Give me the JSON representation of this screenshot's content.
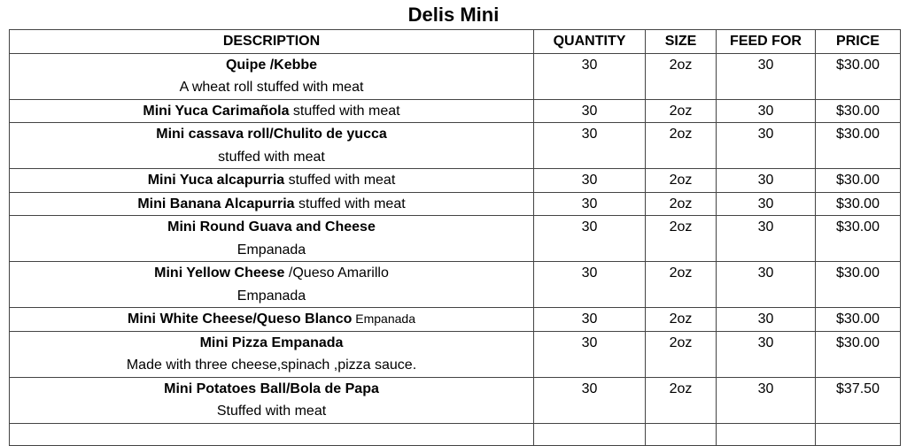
{
  "title": "Delis Mini",
  "headers": {
    "description": "DESCRIPTION",
    "quantity": "QUANTITY",
    "size": "SIZE",
    "feed_for": "FEED FOR",
    "price": "PRICE"
  },
  "rows": [
    {
      "bold": "Quipe /Kebbe",
      "inline": "",
      "line2": "A wheat roll stuffed with meat",
      "quantity": "30",
      "size": "2oz",
      "feed_for": "30",
      "price": "$30.00"
    },
    {
      "bold": "Mini Yuca Carimañola",
      "inline": " stuffed with meat",
      "line2": "",
      "quantity": "30",
      "size": "2oz",
      "feed_for": "30",
      "price": "$30.00"
    },
    {
      "bold": "Mini cassava roll/Chulito de yucca",
      "inline": "",
      "line2": "stuffed with meat",
      "quantity": "30",
      "size": "2oz",
      "feed_for": "30",
      "price": "$30.00"
    },
    {
      "bold": "Mini Yuca alcapurria",
      "inline": " stuffed with meat",
      "line2": "",
      "quantity": "30",
      "size": "2oz",
      "feed_for": "30",
      "price": "$30.00"
    },
    {
      "bold": "Mini Banana  Alcapurria",
      "inline": " stuffed with  meat",
      "line2": "",
      "quantity": "30",
      "size": "2oz",
      "feed_for": "30",
      "price": "$30.00"
    },
    {
      "bold": "Mini Round Guava and Cheese",
      "inline": "",
      "line2": "Empanada",
      "quantity": "30",
      "size": "2oz",
      "feed_for": "30",
      "price": "$30.00"
    },
    {
      "bold": "Mini Yellow Cheese",
      "inline": " /Queso Amarillo",
      "line2": "Empanada",
      "quantity": "30",
      "size": "2oz",
      "feed_for": "30",
      "price": "$30.00"
    },
    {
      "bold": "Mini White Cheese/Queso Blanco",
      "inline_small": "  Empanada",
      "line2": "",
      "quantity": "30",
      "size": "2oz",
      "feed_for": "30",
      "price": "$30.00"
    },
    {
      "bold": "Mini Pizza Empanada",
      "inline": "",
      "line2": "Made with three cheese,spinach ,pizza sauce.",
      "quantity": "30",
      "size": "2oz",
      "feed_for": "30",
      "price": "$30.00"
    },
    {
      "bold": "Mini Potatoes Ball/Bola de Papa",
      "inline": "",
      "line2": "Stuffed with meat",
      "quantity": "30",
      "size": "2oz",
      "feed_for": "30",
      "price": "$37.50"
    }
  ]
}
